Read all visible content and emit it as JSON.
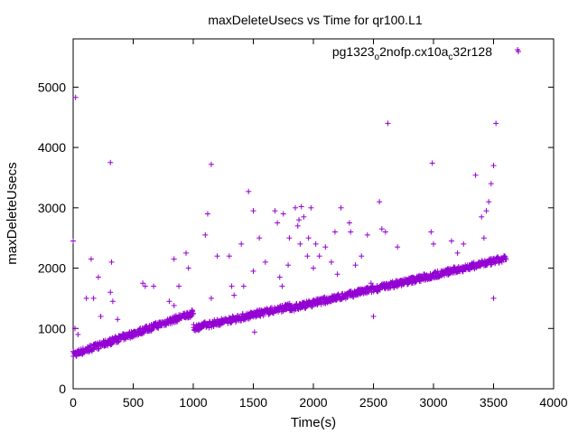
{
  "chart_data": {
    "type": "scatter",
    "title": "maxDeleteUsecs vs Time for qr100.L1",
    "xlabel": "Time(s)",
    "ylabel": "maxDeleteUsecs",
    "xlim": [
      0,
      4000
    ],
    "ylim": [
      0,
      5800
    ],
    "xticks": [
      "0",
      "500",
      "1000",
      "1500",
      "2000",
      "2500",
      "3000",
      "3500",
      "4000"
    ],
    "yticks": [
      "0",
      "1000",
      "2000",
      "3000",
      "4000",
      "5000"
    ],
    "grid": false,
    "legend_position": "top-right",
    "series": [
      {
        "name": "pg1323_o2nofp.cx10a_c32r128",
        "color": "#9400d3",
        "marker": "+",
        "trend_segments": [
          {
            "x_start": 0,
            "x_end": 1000,
            "y_start": 560,
            "y_end": 1250
          },
          {
            "x_start": 1000,
            "x_end": 1800,
            "y_start": 1000,
            "y_end": 1350
          },
          {
            "x_start": 1800,
            "x_end": 3600,
            "y_start": 1320,
            "y_end": 2150
          }
        ],
        "outliers": [
          [
            0,
            2450
          ],
          [
            20,
            4830
          ],
          [
            15,
            1000
          ],
          [
            40,
            900
          ],
          [
            110,
            1500
          ],
          [
            150,
            2150
          ],
          [
            170,
            1500
          ],
          [
            210,
            1850
          ],
          [
            230,
            1200
          ],
          [
            310,
            3750
          ],
          [
            310,
            1600
          ],
          [
            320,
            2100
          ],
          [
            330,
            1450
          ],
          [
            370,
            1150
          ],
          [
            580,
            1750
          ],
          [
            600,
            1700
          ],
          [
            670,
            1700
          ],
          [
            800,
            1450
          ],
          [
            840,
            1380
          ],
          [
            840,
            2150
          ],
          [
            880,
            1700
          ],
          [
            940,
            2250
          ],
          [
            960,
            2000
          ],
          [
            1100,
            2550
          ],
          [
            1120,
            2900
          ],
          [
            1150,
            3720
          ],
          [
            1150,
            1500
          ],
          [
            1200,
            2200
          ],
          [
            1300,
            2200
          ],
          [
            1320,
            1700
          ],
          [
            1340,
            1550
          ],
          [
            1400,
            2400
          ],
          [
            1420,
            1700
          ],
          [
            1460,
            3270
          ],
          [
            1500,
            2950
          ],
          [
            1500,
            1950
          ],
          [
            1510,
            940
          ],
          [
            1550,
            2500
          ],
          [
            1600,
            2100
          ],
          [
            1680,
            2950
          ],
          [
            1700,
            2750
          ],
          [
            1720,
            1850
          ],
          [
            1740,
            1700
          ],
          [
            1750,
            2900
          ],
          [
            1790,
            2050
          ],
          [
            1800,
            2500
          ],
          [
            1850,
            3000
          ],
          [
            1870,
            2700
          ],
          [
            1880,
            2800
          ],
          [
            1890,
            2400
          ],
          [
            1900,
            3020
          ],
          [
            1920,
            2850
          ],
          [
            1950,
            2200
          ],
          [
            1960,
            2500
          ],
          [
            1980,
            3000
          ],
          [
            2000,
            2000
          ],
          [
            2020,
            2400
          ],
          [
            2050,
            2200
          ],
          [
            2100,
            2350
          ],
          [
            2150,
            2100
          ],
          [
            2180,
            2600
          ],
          [
            2200,
            1900
          ],
          [
            2230,
            3000
          ],
          [
            2300,
            2750
          ],
          [
            2310,
            2600
          ],
          [
            2350,
            2050
          ],
          [
            2400,
            2200
          ],
          [
            2450,
            2550
          ],
          [
            2480,
            1750
          ],
          [
            2500,
            1200
          ],
          [
            2550,
            3100
          ],
          [
            2570,
            2650
          ],
          [
            2600,
            2600
          ],
          [
            2620,
            4400
          ],
          [
            2700,
            2350
          ],
          [
            2980,
            2600
          ],
          [
            2990,
            3740
          ],
          [
            3000,
            2400
          ],
          [
            3150,
            2450
          ],
          [
            3200,
            2250
          ],
          [
            3250,
            2400
          ],
          [
            3350,
            3540
          ],
          [
            3400,
            2850
          ],
          [
            3420,
            2500
          ],
          [
            3440,
            2950
          ],
          [
            3460,
            3100
          ],
          [
            3480,
            3400
          ],
          [
            3500,
            3700
          ],
          [
            3520,
            4400
          ],
          [
            3500,
            1500
          ],
          [
            3700,
            5620
          ]
        ]
      }
    ]
  }
}
